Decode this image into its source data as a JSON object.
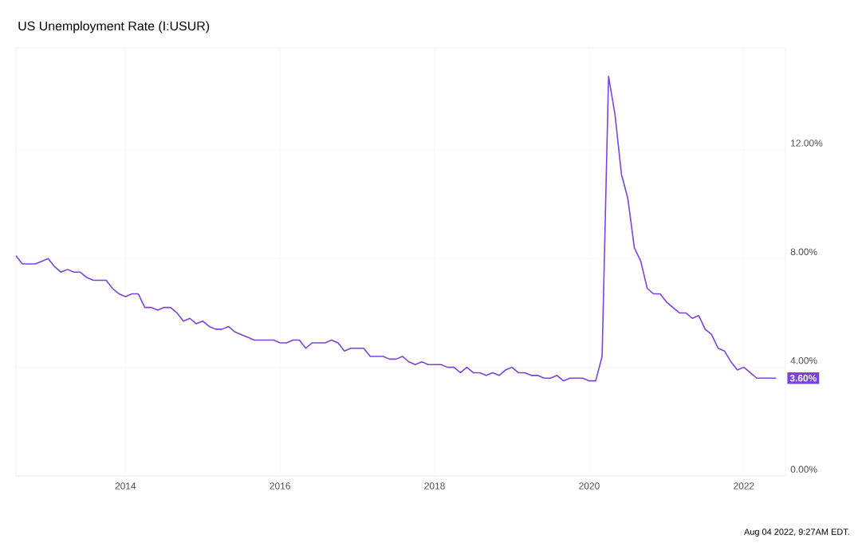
{
  "chart_data": {
    "type": "line",
    "title": "US Unemployment Rate (I:USUR)",
    "x": [
      "2012-08",
      "2012-09",
      "2012-10",
      "2012-11",
      "2012-12",
      "2013-01",
      "2013-02",
      "2013-03",
      "2013-04",
      "2013-05",
      "2013-06",
      "2013-07",
      "2013-08",
      "2013-09",
      "2013-10",
      "2013-11",
      "2013-12",
      "2014-01",
      "2014-02",
      "2014-03",
      "2014-04",
      "2014-05",
      "2014-06",
      "2014-07",
      "2014-08",
      "2014-09",
      "2014-10",
      "2014-11",
      "2014-12",
      "2015-01",
      "2015-02",
      "2015-03",
      "2015-04",
      "2015-05",
      "2015-06",
      "2015-07",
      "2015-08",
      "2015-09",
      "2015-10",
      "2015-11",
      "2015-12",
      "2016-01",
      "2016-02",
      "2016-03",
      "2016-04",
      "2016-05",
      "2016-06",
      "2016-07",
      "2016-08",
      "2016-09",
      "2016-10",
      "2016-11",
      "2016-12",
      "2017-01",
      "2017-02",
      "2017-03",
      "2017-04",
      "2017-05",
      "2017-06",
      "2017-07",
      "2017-08",
      "2017-09",
      "2017-10",
      "2017-11",
      "2017-12",
      "2018-01",
      "2018-02",
      "2018-03",
      "2018-04",
      "2018-05",
      "2018-06",
      "2018-07",
      "2018-08",
      "2018-09",
      "2018-10",
      "2018-11",
      "2018-12",
      "2019-01",
      "2019-02",
      "2019-03",
      "2019-04",
      "2019-05",
      "2019-06",
      "2019-07",
      "2019-08",
      "2019-09",
      "2019-10",
      "2019-11",
      "2019-12",
      "2020-01",
      "2020-02",
      "2020-03",
      "2020-04",
      "2020-05",
      "2020-06",
      "2020-07",
      "2020-08",
      "2020-09",
      "2020-10",
      "2020-11",
      "2020-12",
      "2021-01",
      "2021-02",
      "2021-03",
      "2021-04",
      "2021-05",
      "2021-06",
      "2021-07",
      "2021-08",
      "2021-09",
      "2021-10",
      "2021-11",
      "2021-12",
      "2022-01",
      "2022-02",
      "2022-03",
      "2022-04",
      "2022-05",
      "2022-06"
    ],
    "series": [
      {
        "color": "#7b44d8",
        "values": [
          8.1,
          7.8,
          7.8,
          7.8,
          7.9,
          8.0,
          7.7,
          7.5,
          7.6,
          7.5,
          7.5,
          7.3,
          7.2,
          7.2,
          7.2,
          6.9,
          6.7,
          6.6,
          6.7,
          6.7,
          6.2,
          6.2,
          6.1,
          6.2,
          6.2,
          6.0,
          5.7,
          5.8,
          5.6,
          5.7,
          5.5,
          5.4,
          5.4,
          5.5,
          5.3,
          5.2,
          5.1,
          5.0,
          5.0,
          5.0,
          5.0,
          4.9,
          4.9,
          5.0,
          5.0,
          4.7,
          4.9,
          4.9,
          4.9,
          5.0,
          4.9,
          4.6,
          4.7,
          4.7,
          4.7,
          4.4,
          4.4,
          4.4,
          4.3,
          4.3,
          4.4,
          4.2,
          4.1,
          4.2,
          4.1,
          4.1,
          4.1,
          4.0,
          4.0,
          3.8,
          4.0,
          3.8,
          3.8,
          3.7,
          3.8,
          3.7,
          3.9,
          4.0,
          3.8,
          3.8,
          3.7,
          3.7,
          3.6,
          3.6,
          3.7,
          3.5,
          3.6,
          3.6,
          3.6,
          3.5,
          3.5,
          4.4,
          14.7,
          13.3,
          11.1,
          10.2,
          8.4,
          7.9,
          6.9,
          6.7,
          6.7,
          6.4,
          6.2,
          6.0,
          6.0,
          5.8,
          5.9,
          5.4,
          5.2,
          4.7,
          4.6,
          4.2,
          3.9,
          4.0,
          3.8,
          3.6,
          3.6,
          3.6,
          3.6
        ]
      }
    ],
    "xlim": [
      "2012-08",
      "2022-07-15"
    ],
    "xticks": [
      {
        "value": "2014",
        "label": "2014"
      },
      {
        "value": "2016",
        "label": "2016"
      },
      {
        "value": "2018",
        "label": "2018"
      },
      {
        "value": "2020",
        "label": "2020"
      },
      {
        "value": "2022",
        "label": "2022"
      }
    ],
    "ylim": [
      0,
      15.75
    ],
    "yticks": [
      {
        "value": 0,
        "label": "0.00%"
      },
      {
        "value": 4,
        "label": "4.00%"
      },
      {
        "value": 8,
        "label": "8.00%"
      },
      {
        "value": 12,
        "label": "12.00%"
      }
    ],
    "grid": true,
    "marker": "none",
    "line_style": "solid",
    "annotations": [
      {
        "text": "3.60%",
        "x": "2022-06",
        "y": 3.6
      },
      "Aug 04 2022, 9:27AM EDT."
    ]
  }
}
